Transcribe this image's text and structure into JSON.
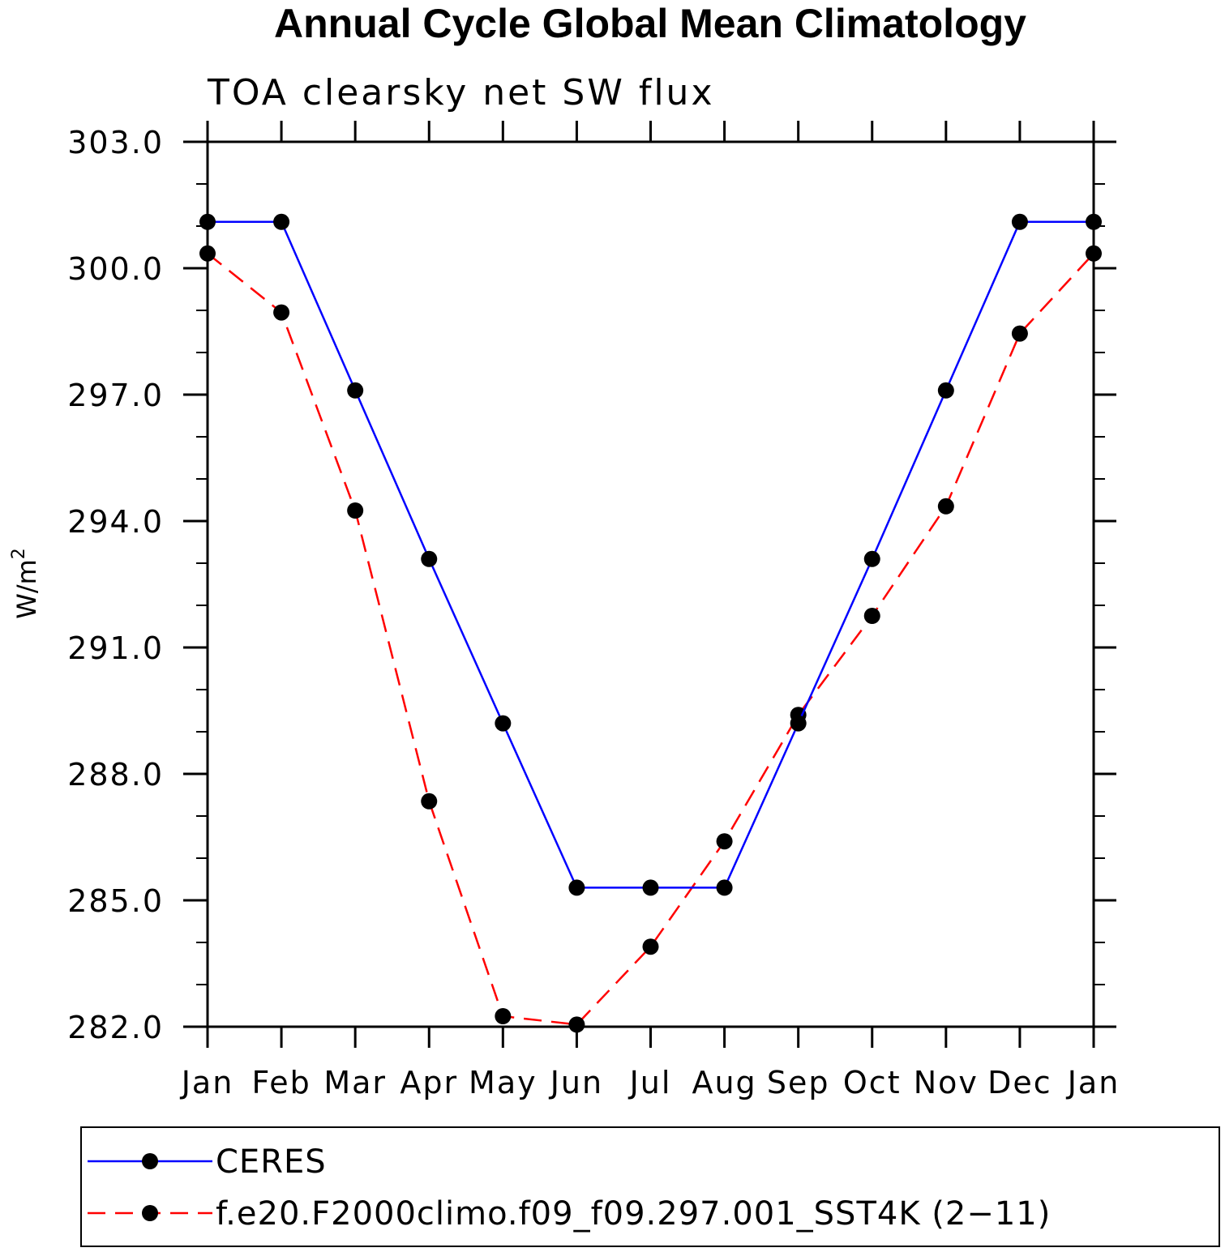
{
  "chart_data": {
    "type": "line",
    "title": "Annual Cycle Global Mean Climatology",
    "subtitle": "TOA clearsky net SW flux",
    "ylabel_base": "W/m",
    "ylabel_sup": "2",
    "xlabel": "",
    "categories": [
      "Jan",
      "Feb",
      "Mar",
      "Apr",
      "May",
      "Jun",
      "Jul",
      "Aug",
      "Sep",
      "Oct",
      "Nov",
      "Dec",
      "Jan"
    ],
    "ylim": [
      282.0,
      303.0
    ],
    "yticks": [
      "282.0",
      "285.0",
      "288.0",
      "291.0",
      "294.0",
      "297.0",
      "300.0",
      "303.0"
    ],
    "ytick_values": [
      282,
      285,
      288,
      291,
      294,
      297,
      300,
      303
    ],
    "yminor_step": 1,
    "grid": false,
    "legend_position": "bottom",
    "series": [
      {
        "name": "CERES",
        "color": "#0000ff",
        "dashed": false,
        "values": [
          301.1,
          301.1,
          297.1,
          293.1,
          289.2,
          285.3,
          285.3,
          285.3,
          289.2,
          293.1,
          297.1,
          301.1,
          301.1
        ]
      },
      {
        "name": "f.e20.F2000climo.f09_f09.297.001_SST4K (2−11)",
        "color": "#ff0000",
        "dashed": true,
        "values": [
          300.35,
          298.95,
          294.25,
          287.35,
          282.25,
          282.05,
          283.9,
          286.4,
          289.4,
          291.75,
          294.35,
          298.45,
          300.35
        ]
      }
    ]
  }
}
